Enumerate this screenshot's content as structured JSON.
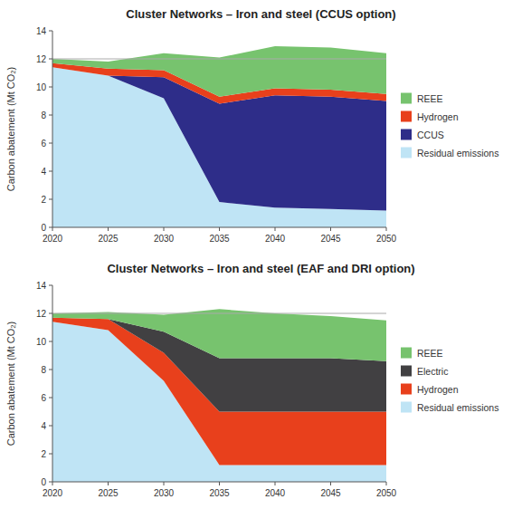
{
  "chart_data": [
    {
      "type": "area",
      "stacked": true,
      "title": "Cluster Networks – Iron and steel (CCUS option)",
      "ylabel": "Carbon abatement (Mt CO₂)",
      "x": [
        2020,
        2025,
        2030,
        2035,
        2040,
        2045,
        2050
      ],
      "xlim": [
        2020,
        2050
      ],
      "xticks": [
        2020,
        2025,
        2030,
        2035,
        2040,
        2045,
        2050
      ],
      "ylim": [
        0,
        14
      ],
      "yticks": [
        0,
        2,
        4,
        6,
        8,
        10,
        12,
        14
      ],
      "hline": 12.0,
      "grid": false,
      "legend": "right",
      "series": [
        {
          "name": "Residual emissions",
          "color": "#bfe4f5",
          "values": [
            11.4,
            10.8,
            9.2,
            1.8,
            1.4,
            1.3,
            1.2
          ]
        },
        {
          "name": "CCUS",
          "color": "#2e2d89",
          "values": [
            0.0,
            0.0,
            1.5,
            7.0,
            8.0,
            8.0,
            7.8
          ]
        },
        {
          "name": "Hydrogen",
          "color": "#e8401c",
          "values": [
            0.3,
            0.5,
            0.5,
            0.5,
            0.5,
            0.5,
            0.5
          ]
        },
        {
          "name": "REEE",
          "color": "#77c36e",
          "values": [
            0.3,
            0.5,
            1.2,
            2.8,
            3.0,
            3.0,
            2.9
          ]
        }
      ]
    },
    {
      "type": "area",
      "stacked": true,
      "title": "Cluster Networks – Iron and steel (EAF and DRI option)",
      "ylabel": "Carbon abatement (Mt CO₂)",
      "x": [
        2020,
        2025,
        2030,
        2035,
        2040,
        2045,
        2050
      ],
      "xlim": [
        2020,
        2050
      ],
      "xticks": [
        2020,
        2025,
        2030,
        2035,
        2040,
        2045,
        2050
      ],
      "ylim": [
        0,
        14
      ],
      "yticks": [
        0,
        2,
        4,
        6,
        8,
        10,
        12,
        14
      ],
      "hline": 12.0,
      "grid": false,
      "legend": "right",
      "series": [
        {
          "name": "Residual emissions",
          "color": "#bfe4f5",
          "values": [
            11.4,
            10.8,
            7.2,
            1.2,
            1.2,
            1.2,
            1.2
          ]
        },
        {
          "name": "Hydrogen",
          "color": "#e8401c",
          "values": [
            0.3,
            0.8,
            2.0,
            3.8,
            3.8,
            3.8,
            3.8
          ]
        },
        {
          "name": "Electric",
          "color": "#414042",
          "values": [
            0.0,
            0.0,
            1.5,
            3.8,
            3.8,
            3.8,
            3.6
          ]
        },
        {
          "name": "REEE",
          "color": "#77c36e",
          "values": [
            0.3,
            0.5,
            1.2,
            3.5,
            3.2,
            3.0,
            2.9
          ]
        }
      ]
    }
  ]
}
